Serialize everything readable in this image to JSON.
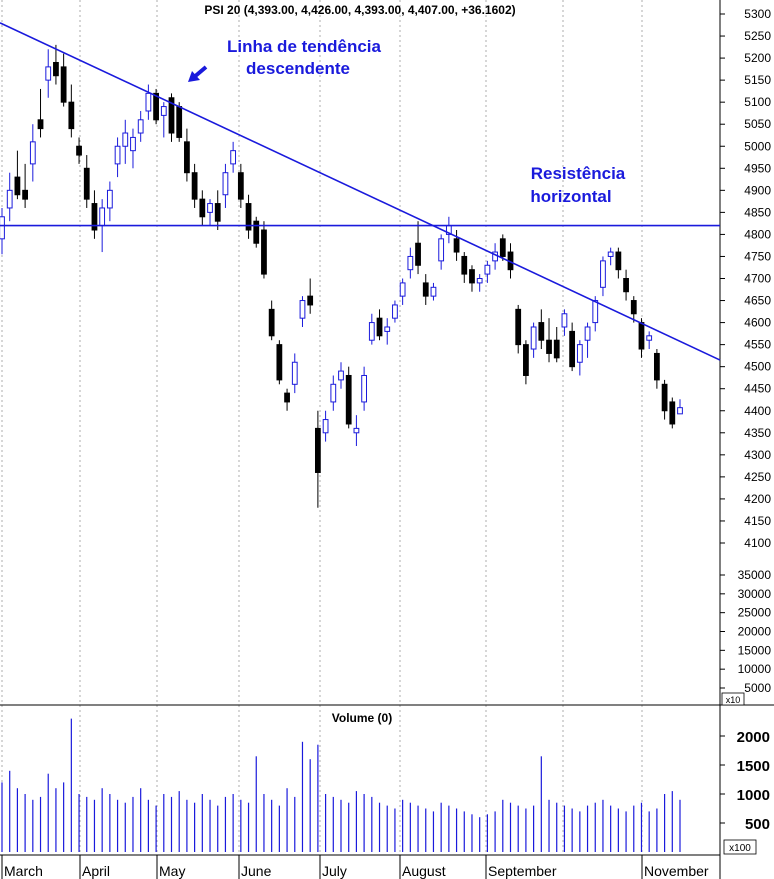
{
  "chart_data": [
    {
      "type": "candlestick",
      "title": "PSI 20 (4,393.00, 4,426.00, 4,393.00, 4,407.00, +36.1602)",
      "y_ticks": [
        "5300",
        "5250",
        "5200",
        "5150",
        "5100",
        "5050",
        "5000",
        "4950",
        "4900",
        "4850",
        "4800",
        "4750",
        "4700",
        "4650",
        "4600",
        "4550",
        "4500",
        "4450",
        "4400",
        "4350",
        "4300",
        "4250",
        "4200",
        "4150",
        "4100"
      ],
      "ylim": [
        4100,
        5300
      ],
      "volume_overlay_ticks": [
        "35000",
        "30000",
        "25000",
        "20000",
        "15000",
        "10000",
        "5000"
      ],
      "volume_overlay_multiplier": "x10",
      "months": [
        "March",
        "April",
        "May",
        "June",
        "July",
        "August",
        "September",
        "November"
      ],
      "grid": "vertical dotted at month starts",
      "annotations": [
        {
          "text": [
            "Linha de tendência",
            "descendente"
          ],
          "kind": "downtrend line"
        },
        {
          "text": [
            "Resistência",
            "horizontal"
          ],
          "kind": "horizontal resistance",
          "level": 4820
        }
      ],
      "trendline": {
        "start": {
          "x": "early March",
          "y": 5280
        },
        "end": {
          "x": "mid November",
          "y": 4515
        }
      },
      "candles": [
        {
          "o": 4790,
          "h": 4860,
          "l": 4755,
          "c": 4840
        },
        {
          "o": 4860,
          "h": 4940,
          "l": 4830,
          "c": 4900
        },
        {
          "o": 4930,
          "h": 4990,
          "l": 4880,
          "c": 4890
        },
        {
          "o": 4900,
          "h": 4960,
          "l": 4860,
          "c": 4880
        },
        {
          "o": 4960,
          "h": 5050,
          "l": 4920,
          "c": 5010
        },
        {
          "o": 5060,
          "h": 5130,
          "l": 5020,
          "c": 5040
        },
        {
          "o": 5150,
          "h": 5220,
          "l": 5110,
          "c": 5180
        },
        {
          "o": 5190,
          "h": 5230,
          "l": 5140,
          "c": 5160
        },
        {
          "o": 5180,
          "h": 5210,
          "l": 5090,
          "c": 5100
        },
        {
          "o": 5100,
          "h": 5140,
          "l": 5020,
          "c": 5040
        },
        {
          "o": 5000,
          "h": 5020,
          "l": 4960,
          "c": 4980
        },
        {
          "o": 4950,
          "h": 4980,
          "l": 4860,
          "c": 4880
        },
        {
          "o": 4870,
          "h": 4900,
          "l": 4790,
          "c": 4810
        },
        {
          "o": 4820,
          "h": 4880,
          "l": 4760,
          "c": 4860
        },
        {
          "o": 4860,
          "h": 4920,
          "l": 4830,
          "c": 4900
        },
        {
          "o": 4960,
          "h": 5020,
          "l": 4930,
          "c": 5000
        },
        {
          "o": 5000,
          "h": 5060,
          "l": 4960,
          "c": 5030
        },
        {
          "o": 4990,
          "h": 5040,
          "l": 4950,
          "c": 5020
        },
        {
          "o": 5030,
          "h": 5080,
          "l": 5010,
          "c": 5060
        },
        {
          "o": 5080,
          "h": 5140,
          "l": 5060,
          "c": 5120
        },
        {
          "o": 5120,
          "h": 5130,
          "l": 5050,
          "c": 5060
        },
        {
          "o": 5070,
          "h": 5100,
          "l": 5020,
          "c": 5090
        },
        {
          "o": 5110,
          "h": 5120,
          "l": 5010,
          "c": 5030
        },
        {
          "o": 5090,
          "h": 5100,
          "l": 5010,
          "c": 5020
        },
        {
          "o": 5010,
          "h": 5040,
          "l": 4920,
          "c": 4940
        },
        {
          "o": 4940,
          "h": 4960,
          "l": 4860,
          "c": 4880
        },
        {
          "o": 4880,
          "h": 4900,
          "l": 4820,
          "c": 4840
        },
        {
          "o": 4850,
          "h": 4880,
          "l": 4820,
          "c": 4870
        },
        {
          "o": 4870,
          "h": 4900,
          "l": 4810,
          "c": 4830
        },
        {
          "o": 4890,
          "h": 4960,
          "l": 4860,
          "c": 4940
        },
        {
          "o": 4960,
          "h": 5010,
          "l": 4940,
          "c": 4990
        },
        {
          "o": 4940,
          "h": 4960,
          "l": 4860,
          "c": 4880
        },
        {
          "o": 4870,
          "h": 4890,
          "l": 4790,
          "c": 4810
        },
        {
          "o": 4830,
          "h": 4840,
          "l": 4770,
          "c": 4780
        },
        {
          "o": 4810,
          "h": 4830,
          "l": 4700,
          "c": 4710
        },
        {
          "o": 4630,
          "h": 4650,
          "l": 4560,
          "c": 4570
        },
        {
          "o": 4550,
          "h": 4560,
          "l": 4460,
          "c": 4470
        },
        {
          "o": 4440,
          "h": 4450,
          "l": 4400,
          "c": 4420
        },
        {
          "o": 4460,
          "h": 4530,
          "l": 4440,
          "c": 4510
        },
        {
          "o": 4610,
          "h": 4660,
          "l": 4590,
          "c": 4650
        },
        {
          "o": 4660,
          "h": 4700,
          "l": 4620,
          "c": 4640
        },
        {
          "o": 4360,
          "h": 4400,
          "l": 4180,
          "c": 4260
        },
        {
          "o": 4350,
          "h": 4400,
          "l": 4330,
          "c": 4380
        },
        {
          "o": 4420,
          "h": 4480,
          "l": 4400,
          "c": 4460
        },
        {
          "o": 4470,
          "h": 4510,
          "l": 4450,
          "c": 4490
        },
        {
          "o": 4480,
          "h": 4500,
          "l": 4360,
          "c": 4370
        },
        {
          "o": 4350,
          "h": 4390,
          "l": 4320,
          "c": 4360
        },
        {
          "o": 4420,
          "h": 4500,
          "l": 4400,
          "c": 4480
        },
        {
          "o": 4560,
          "h": 4620,
          "l": 4550,
          "c": 4600
        },
        {
          "o": 4610,
          "h": 4630,
          "l": 4560,
          "c": 4570
        },
        {
          "o": 4580,
          "h": 4610,
          "l": 4550,
          "c": 4590
        },
        {
          "o": 4610,
          "h": 4650,
          "l": 4600,
          "c": 4640
        },
        {
          "o": 4660,
          "h": 4700,
          "l": 4640,
          "c": 4690
        },
        {
          "o": 4720,
          "h": 4770,
          "l": 4700,
          "c": 4750
        },
        {
          "o": 4780,
          "h": 4830,
          "l": 4710,
          "c": 4730
        },
        {
          "o": 4690,
          "h": 4710,
          "l": 4640,
          "c": 4660
        },
        {
          "o": 4660,
          "h": 4690,
          "l": 4650,
          "c": 4680
        },
        {
          "o": 4740,
          "h": 4800,
          "l": 4720,
          "c": 4790
        },
        {
          "o": 4800,
          "h": 4840,
          "l": 4780,
          "c": 4820
        },
        {
          "o": 4790,
          "h": 4810,
          "l": 4740,
          "c": 4760
        },
        {
          "o": 4750,
          "h": 4760,
          "l": 4690,
          "c": 4710
        },
        {
          "o": 4720,
          "h": 4730,
          "l": 4670,
          "c": 4690
        },
        {
          "o": 4690,
          "h": 4710,
          "l": 4670,
          "c": 4700
        },
        {
          "o": 4710,
          "h": 4740,
          "l": 4690,
          "c": 4730
        },
        {
          "o": 4740,
          "h": 4780,
          "l": 4720,
          "c": 4760
        },
        {
          "o": 4790,
          "h": 4800,
          "l": 4740,
          "c": 4750
        },
        {
          "o": 4760,
          "h": 4780,
          "l": 4700,
          "c": 4720
        },
        {
          "o": 4630,
          "h": 4640,
          "l": 4530,
          "c": 4550
        },
        {
          "o": 4550,
          "h": 4560,
          "l": 4460,
          "c": 4480
        },
        {
          "o": 4540,
          "h": 4600,
          "l": 4520,
          "c": 4590
        },
        {
          "o": 4600,
          "h": 4630,
          "l": 4540,
          "c": 4560
        },
        {
          "o": 4560,
          "h": 4610,
          "l": 4510,
          "c": 4530
        },
        {
          "o": 4560,
          "h": 4590,
          "l": 4510,
          "c": 4520
        },
        {
          "o": 4590,
          "h": 4630,
          "l": 4570,
          "c": 4620
        },
        {
          "o": 4580,
          "h": 4600,
          "l": 4490,
          "c": 4500
        },
        {
          "o": 4510,
          "h": 4560,
          "l": 4480,
          "c": 4550
        },
        {
          "o": 4560,
          "h": 4600,
          "l": 4520,
          "c": 4590
        },
        {
          "o": 4600,
          "h": 4660,
          "l": 4580,
          "c": 4650
        },
        {
          "o": 4680,
          "h": 4750,
          "l": 4660,
          "c": 4740
        },
        {
          "o": 4750,
          "h": 4770,
          "l": 4730,
          "c": 4760
        },
        {
          "o": 4760,
          "h": 4770,
          "l": 4700,
          "c": 4720
        },
        {
          "o": 4700,
          "h": 4720,
          "l": 4650,
          "c": 4670
        },
        {
          "o": 4650,
          "h": 4660,
          "l": 4600,
          "c": 4620
        },
        {
          "o": 4600,
          "h": 4610,
          "l": 4520,
          "c": 4540
        },
        {
          "o": 4560,
          "h": 4580,
          "l": 4540,
          "c": 4570
        },
        {
          "o": 4530,
          "h": 4540,
          "l": 4450,
          "c": 4470
        },
        {
          "o": 4460,
          "h": 4470,
          "l": 4380,
          "c": 4400
        },
        {
          "o": 4420,
          "h": 4430,
          "l": 4360,
          "c": 4370
        },
        {
          "o": 4393,
          "h": 4426,
          "l": 4393,
          "c": 4407
        }
      ]
    },
    {
      "type": "bar",
      "title": "Volume (0)",
      "y_ticks": [
        "2000",
        "1500",
        "1000",
        "500"
      ],
      "ylim": [
        0,
        2200
      ],
      "multiplier": "x100",
      "values": [
        1200,
        1400,
        1100,
        1000,
        900,
        950,
        1350,
        1100,
        1200,
        2300,
        1000,
        950,
        900,
        1100,
        1000,
        900,
        850,
        950,
        1100,
        900,
        800,
        1000,
        950,
        1050,
        900,
        850,
        1000,
        900,
        800,
        950,
        1000,
        900,
        850,
        1650,
        1000,
        900,
        800,
        1100,
        950,
        1900,
        1600,
        1850,
        1000,
        950,
        900,
        850,
        1050,
        1000,
        950,
        850,
        800,
        750,
        900,
        850,
        800,
        750,
        700,
        850,
        800,
        750,
        700,
        650,
        600,
        650,
        700,
        900,
        850,
        800,
        750,
        800,
        1650,
        900,
        850,
        800,
        750,
        700,
        800,
        850,
        900,
        800,
        750,
        700,
        800,
        850,
        700,
        750,
        1000,
        1050,
        900
      ]
    }
  ]
}
